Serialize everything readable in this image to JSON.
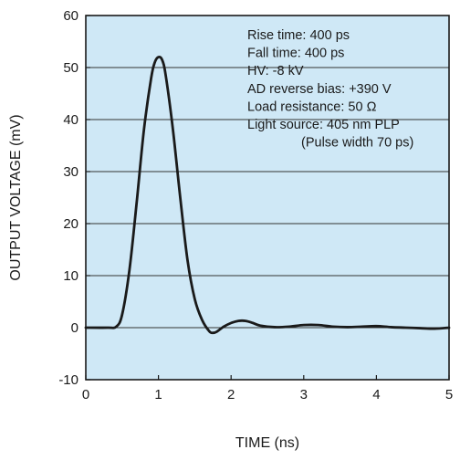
{
  "chart_data": {
    "type": "line",
    "title": "",
    "xlabel": "TIME (ns)",
    "ylabel": "OUTPUT VOLTAGE (mV)",
    "xlim": [
      0,
      5
    ],
    "ylim": [
      -10,
      60
    ],
    "xticks": [
      0,
      1,
      2,
      3,
      4,
      5
    ],
    "yticks": [
      -10,
      0,
      10,
      20,
      30,
      40,
      50,
      60
    ],
    "grid": "horizontal",
    "background_color": "#cfe8f6",
    "line_color": "#1a1a1a",
    "annotations": [
      "Rise time: 400 ps",
      "Fall time: 400 ps",
      "HV: -8 kV",
      "AD reverse bias: +390 V",
      "Load resistance: 50 Ω",
      "Light source: 405 nm PLP",
      "(Pulse width 70 ps)"
    ],
    "series": [
      {
        "x": [
          0,
          0.3,
          0.42,
          0.5,
          0.6,
          0.7,
          0.8,
          0.9,
          0.95,
          1.0,
          1.05,
          1.1,
          1.2,
          1.3,
          1.4,
          1.5,
          1.6,
          1.7,
          1.75,
          1.8,
          1.9,
          2.0,
          2.1,
          2.2,
          2.3,
          2.4,
          2.6,
          2.8,
          3.0,
          3.2,
          3.4,
          3.6,
          3.8,
          4.0,
          4.2,
          4.4,
          4.6,
          4.8,
          5.0
        ],
        "y": [
          0,
          0,
          0.2,
          2.5,
          11,
          24,
          38,
          48,
          51,
          52,
          51.5,
          48.5,
          38,
          25,
          13,
          5.5,
          1.5,
          -0.7,
          -1.0,
          -0.8,
          0.2,
          0.9,
          1.3,
          1.3,
          0.9,
          0.4,
          0.1,
          0.2,
          0.5,
          0.5,
          0.2,
          0.1,
          0.2,
          0.3,
          0.1,
          0.0,
          -0.1,
          -0.2,
          0.0
        ]
      }
    ]
  }
}
